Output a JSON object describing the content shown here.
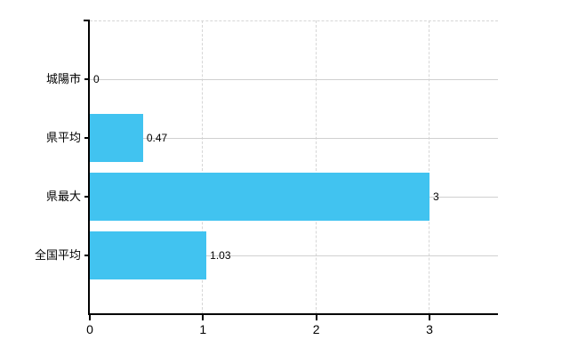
{
  "chart_data": {
    "type": "bar",
    "orientation": "horizontal",
    "title": "",
    "xlabel": "",
    "ylabel": "",
    "categories": [
      "城陽市",
      "県平均",
      "県最大",
      "全国平均"
    ],
    "values": [
      0,
      0.47,
      3,
      1.03
    ],
    "value_labels": [
      "0",
      "0.47",
      "3",
      "1.03"
    ],
    "x_ticks": [
      0,
      1,
      2,
      3
    ],
    "xlim": [
      0,
      3.6
    ],
    "legend": "none",
    "grid": "horizontal solid lines at row centers, vertical dashed lines at x ticks, dashed top border",
    "bar_color": "#41c3f0",
    "axis_color": "#000000",
    "solid_gridline_color": "#d0d0d0",
    "dashed_gridline_color": "#d6d6d6",
    "text_color": "#000000",
    "background_color": "#ffffff"
  }
}
